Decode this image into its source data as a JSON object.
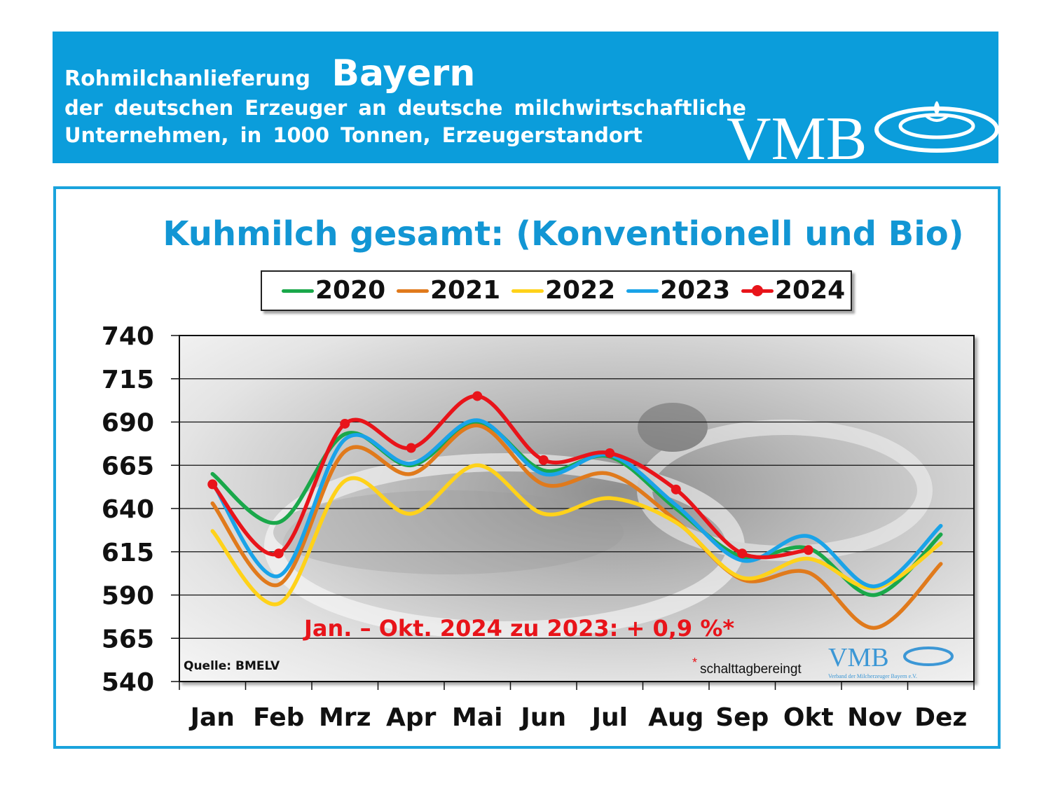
{
  "header": {
    "line1_prefix": "Rohmilchanlieferung",
    "line1_region": "Bayern",
    "line2": "der deutschen Erzeuger an deutsche milchwirtschaftliche",
    "line3": "Unternehmen, in 1000 Tonnen, Erzeugerstandort",
    "logo_text": "VMB"
  },
  "colors": {
    "banner": "#0b9ddb",
    "frame": "#1aa3dc",
    "title": "#1296d4",
    "annotation": "#e8141a"
  },
  "chart_data": {
    "type": "line",
    "title": "Kuhmilch gesamt: (Konventionell und Bio)",
    "categories": [
      "Jan",
      "Feb",
      "Mrz",
      "Apr",
      "Mai",
      "Jun",
      "Jul",
      "Aug",
      "Sep",
      "Okt",
      "Nov",
      "Dez"
    ],
    "yticks": [
      740,
      715,
      690,
      665,
      640,
      615,
      590,
      565,
      540
    ],
    "ylim": [
      540,
      740
    ],
    "grid": true,
    "legend_position": "top",
    "series": [
      {
        "name": "2020",
        "color": "#1aa84a",
        "markers": false,
        "values": [
          660,
          632,
          683,
          665,
          690,
          662,
          670,
          640,
          612,
          617,
          590,
          625
        ]
      },
      {
        "name": "2021",
        "color": "#e07a1c",
        "markers": false,
        "values": [
          643,
          596,
          673,
          660,
          688,
          654,
          660,
          633,
          599,
          603,
          571,
          608
        ]
      },
      {
        "name": "2022",
        "color": "#ffd21a",
        "markers": false,
        "values": [
          627,
          585,
          656,
          637,
          665,
          637,
          646,
          632,
          600,
          611,
          594,
          620
        ]
      },
      {
        "name": "2023",
        "color": "#1aa3e8",
        "markers": false,
        "values": [
          655,
          601,
          680,
          666,
          691,
          660,
          671,
          642,
          610,
          624,
          595,
          630
        ]
      },
      {
        "name": "2024",
        "color": "#e8141a",
        "markers": true,
        "values": [
          654,
          614,
          689,
          675,
          705,
          668,
          672,
          651,
          614,
          616,
          null,
          null
        ]
      }
    ],
    "annotation": "Jan. – Okt. 2024 zu 2023: + 0,9 %*",
    "footnote_mark": "*",
    "footnote": "schalttagbereingt",
    "source": "Quelle:  BMELV",
    "watermark_logo": "VMB",
    "watermark_caption": "Verband der Milcherzeuger Bayern e.V."
  }
}
